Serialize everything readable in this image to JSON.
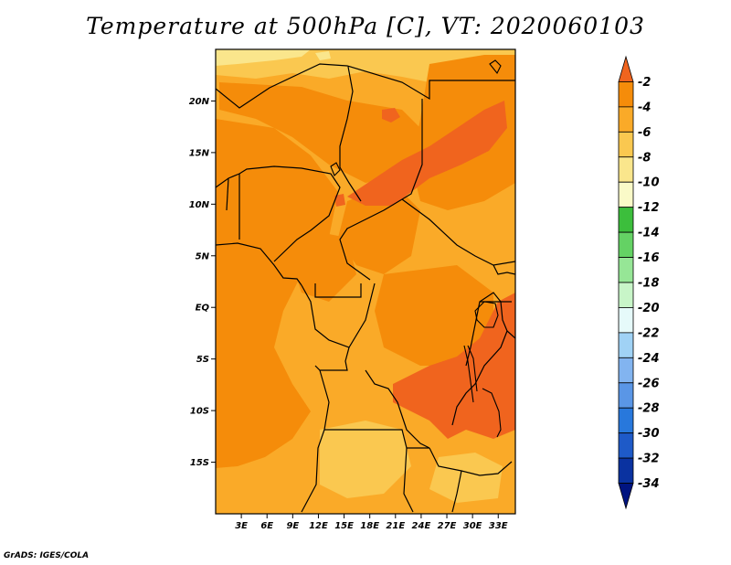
{
  "title": "Temperature at 500hPa [C], VT: 2020060103",
  "credit": "GrADS: IGES/COLA",
  "map": {
    "lon_range": [
      0,
      35
    ],
    "lat_range": [
      -20,
      25
    ],
    "x_ticks": [
      "3E",
      "6E",
      "9E",
      "12E",
      "15E",
      "18E",
      "21E",
      "24E",
      "27E",
      "30E",
      "33E"
    ],
    "y_ticks": [
      "20N",
      "15N",
      "10N",
      "5N",
      "EQ",
      "5S",
      "10S",
      "15S"
    ]
  },
  "colorbar": {
    "levels": [
      "-2",
      "-4",
      "-6",
      "-8",
      "-10",
      "-12",
      "-14",
      "-16",
      "-18",
      "-20",
      "-22",
      "-24",
      "-26",
      "-28",
      "-30",
      "-32",
      "-34"
    ],
    "colors": [
      "#f0641e",
      "#f58c0a",
      "#faaa28",
      "#fac850",
      "#fae68c",
      "#fafac8",
      "#3cbe3c",
      "#64d264",
      "#96e696",
      "#c8f5c8",
      "#e6fafa",
      "#a0d2f5",
      "#82b4f0",
      "#5a96e6",
      "#2878dc",
      "#1e5ac8",
      "#0a32a0",
      "#001480"
    ]
  }
}
